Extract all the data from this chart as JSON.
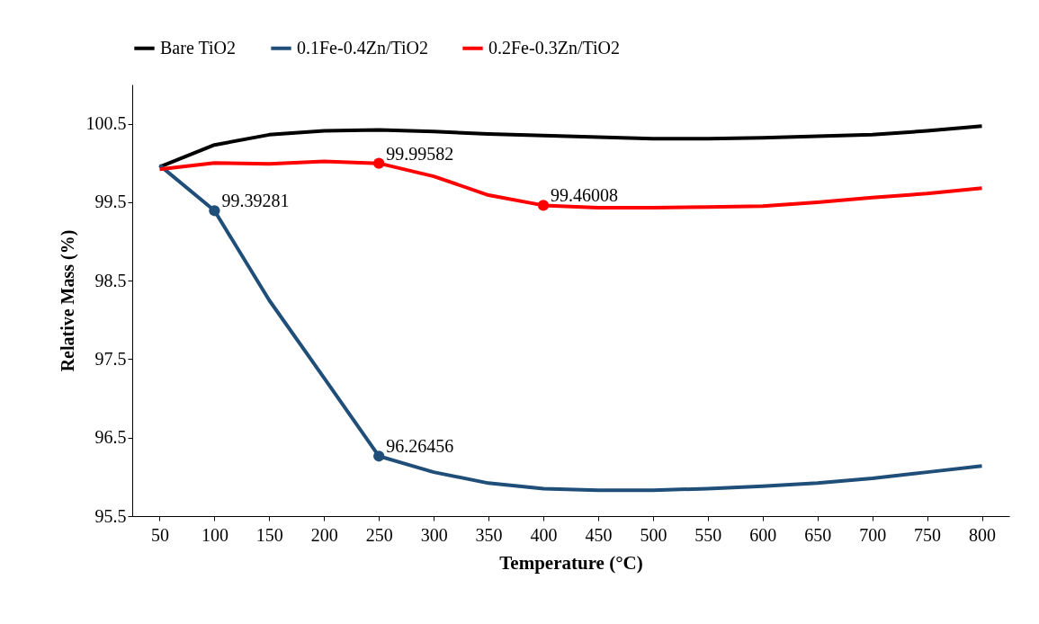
{
  "chart_data": {
    "type": "line",
    "xlabel": "Temperature (°C)",
    "ylabel": "Relative Mass (%)",
    "categories": [
      "50",
      "100",
      "150",
      "200",
      "250",
      "300",
      "350",
      "400",
      "450",
      "500",
      "550",
      "600",
      "650",
      "700",
      "750",
      "800"
    ],
    "series": [
      {
        "name": "Bare TiO2",
        "color": "#000000",
        "values": [
          99.95,
          100.23,
          100.36,
          100.41,
          100.42,
          100.4,
          100.37,
          100.35,
          100.33,
          100.31,
          100.31,
          100.32,
          100.34,
          100.36,
          100.41,
          100.47
        ]
      },
      {
        "name": "0.1Fe-0.4Zn/TiO2",
        "color": "#1f4e79",
        "values": [
          99.97,
          99.39281,
          98.25,
          97.26,
          96.26456,
          96.06,
          95.92,
          95.85,
          95.83,
          95.83,
          95.85,
          95.88,
          95.92,
          95.98,
          96.06,
          96.14
        ],
        "value_labels": [
          null,
          "99.39281",
          null,
          null,
          "96.26456",
          null,
          null,
          null,
          null,
          null,
          null,
          null,
          null,
          null,
          null,
          null
        ]
      },
      {
        "name": "0.2Fe-0.3Zn/TiO2",
        "color": "#ff0000",
        "values": [
          99.92,
          100.0,
          99.99,
          100.02,
          99.99582,
          99.83,
          99.59,
          99.46008,
          99.43,
          99.43,
          99.44,
          99.45,
          99.5,
          99.56,
          99.61,
          99.68
        ],
        "value_labels": [
          null,
          null,
          null,
          null,
          "99.99582",
          null,
          null,
          "99.46008",
          null,
          null,
          null,
          null,
          null,
          null,
          null,
          null
        ]
      }
    ],
    "ylim": [
      95.5,
      101
    ],
    "yticks": [
      95.5,
      96.5,
      97.5,
      98.5,
      99.5,
      100.5
    ],
    "grid": false,
    "legend": "top",
    "marker": "none",
    "line_style": "solid"
  }
}
